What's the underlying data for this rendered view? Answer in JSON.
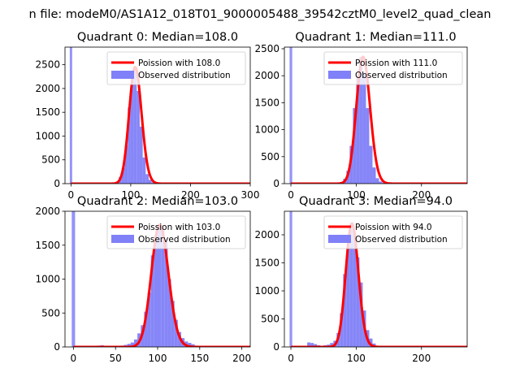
{
  "suptitle": "n file: modeM0/AS1A12_018T01_9000005488_39542cztM0_level2_quad_clean",
  "colors": {
    "hist": "#8080f8",
    "poisson": "#ff0000",
    "spike": "#8080f8"
  },
  "chart_data": [
    {
      "type": "bar",
      "title": "Quadrant 0: Median=108.0",
      "legend": {
        "line": "Poission with 108.0",
        "bars": "Observed distribution",
        "placement": "top-right"
      },
      "xlim": [
        -10,
        300
      ],
      "ylim": [
        0,
        2870
      ],
      "xticks": [
        0,
        100,
        200,
        300
      ],
      "yticks": [
        0,
        500,
        1000,
        1500,
        2000,
        2500
      ],
      "zero_spike": 2870,
      "bin_width": 5,
      "hist": [
        [
          65,
          10
        ],
        [
          70,
          20
        ],
        [
          75,
          40
        ],
        [
          80,
          140
        ],
        [
          85,
          330
        ],
        [
          90,
          800
        ],
        [
          95,
          1600
        ],
        [
          100,
          2150
        ],
        [
          105,
          2450
        ],
        [
          110,
          1950
        ],
        [
          115,
          1200
        ],
        [
          120,
          550
        ],
        [
          125,
          200
        ],
        [
          130,
          80
        ],
        [
          135,
          30
        ],
        [
          140,
          10
        ]
      ],
      "poisson_mean": 108.0
    },
    {
      "type": "bar",
      "title": "Quadrant 1: Median=111.0",
      "legend": {
        "line": "Poission with 111.0",
        "bars": "Observed distribution",
        "placement": "top-right"
      },
      "xlim": [
        -10,
        270
      ],
      "ylim": [
        0,
        2530
      ],
      "xticks": [
        0,
        100,
        200
      ],
      "yticks": [
        0,
        500,
        1000,
        1500,
        2000,
        2500
      ],
      "zero_spike": 2530,
      "bin_width": 5,
      "hist": [
        [
          70,
          10
        ],
        [
          75,
          30
        ],
        [
          80,
          90
        ],
        [
          85,
          240
        ],
        [
          90,
          700
        ],
        [
          95,
          1400
        ],
        [
          100,
          2000
        ],
        [
          105,
          2350
        ],
        [
          110,
          2050
        ],
        [
          115,
          1400
        ],
        [
          120,
          700
        ],
        [
          125,
          300
        ],
        [
          130,
          100
        ],
        [
          135,
          40
        ],
        [
          140,
          15
        ]
      ],
      "poisson_mean": 111.0
    },
    {
      "type": "bar",
      "title": "Quadrant 2: Median=103.0",
      "legend": {
        "line": "Poission with 103.0",
        "bars": "Observed distribution",
        "placement": "top-right"
      },
      "xlim": [
        -10,
        210
      ],
      "ylim": [
        0,
        2000
      ],
      "xticks": [
        0,
        50,
        100,
        150,
        200
      ],
      "yticks": [
        0,
        500,
        1000,
        1500,
        2000
      ],
      "zero_spike": 2000,
      "bin_width": 4,
      "hist": [
        [
          28,
          20
        ],
        [
          32,
          25
        ],
        [
          40,
          10
        ],
        [
          48,
          15
        ],
        [
          56,
          20
        ],
        [
          60,
          30
        ],
        [
          64,
          45
        ],
        [
          68,
          65
        ],
        [
          72,
          110
        ],
        [
          76,
          200
        ],
        [
          80,
          320
        ],
        [
          84,
          520
        ],
        [
          88,
          800
        ],
        [
          92,
          1350
        ],
        [
          96,
          1650
        ],
        [
          100,
          1800
        ],
        [
          104,
          1750
        ],
        [
          108,
          1550
        ],
        [
          112,
          1000
        ],
        [
          116,
          680
        ],
        [
          120,
          400
        ],
        [
          124,
          220
        ],
        [
          128,
          130
        ],
        [
          132,
          80
        ],
        [
          136,
          60
        ],
        [
          140,
          40
        ],
        [
          144,
          20
        ],
        [
          148,
          10
        ]
      ],
      "poisson_mean": 103.0
    },
    {
      "type": "bar",
      "title": "Quadrant 3: Median=94.0",
      "legend": {
        "line": "Poission with 94.0",
        "bars": "Observed distribution",
        "placement": "top-right"
      },
      "xlim": [
        -10,
        270
      ],
      "ylim": [
        0,
        2420
      ],
      "xticks": [
        0,
        100,
        200
      ],
      "yticks": [
        0,
        500,
        1000,
        1500,
        2000
      ],
      "zero_spike": 2420,
      "bin_width": 5,
      "hist": [
        [
          25,
          80
        ],
        [
          30,
          70
        ],
        [
          35,
          50
        ],
        [
          40,
          30
        ],
        [
          45,
          20
        ],
        [
          50,
          30
        ],
        [
          55,
          40
        ],
        [
          60,
          70
        ],
        [
          65,
          110
        ],
        [
          70,
          250
        ],
        [
          75,
          600
        ],
        [
          80,
          1300
        ],
        [
          85,
          1800
        ],
        [
          90,
          2200
        ],
        [
          95,
          2050
        ],
        [
          100,
          1600
        ],
        [
          105,
          1150
        ],
        [
          110,
          650
        ],
        [
          115,
          300
        ],
        [
          120,
          150
        ],
        [
          125,
          60
        ],
        [
          130,
          20
        ]
      ],
      "poisson_mean": 94.0
    }
  ]
}
